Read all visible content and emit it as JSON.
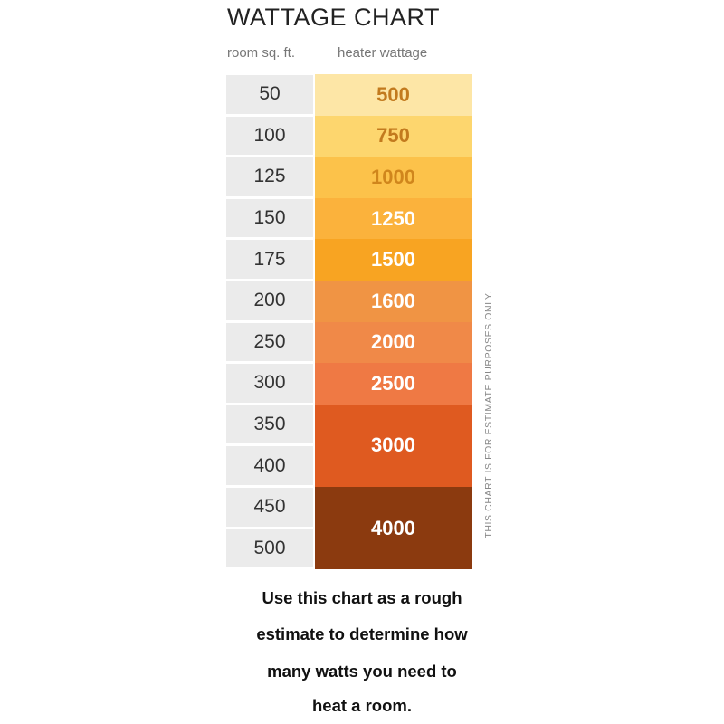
{
  "chart_data": {
    "type": "table",
    "title": "WATTAGE CHART",
    "columns": [
      "room sq. ft.",
      "heater wattage"
    ],
    "rows": [
      {
        "sqft": [
          "50"
        ],
        "watts": "500",
        "color": "#fde6a6",
        "text_color": "#c27a1e"
      },
      {
        "sqft": [
          "100"
        ],
        "watts": "750",
        "color": "#fdd66e",
        "text_color": "#c27a1e"
      },
      {
        "sqft": [
          "125"
        ],
        "watts": "1000",
        "color": "#fcc24a",
        "text_color": "#d0861c"
      },
      {
        "sqft": [
          "150"
        ],
        "watts": "1250",
        "color": "#fbb23c",
        "text_color": "#ffffff"
      },
      {
        "sqft": [
          "175"
        ],
        "watts": "1500",
        "color": "#f8a422",
        "text_color": "#ffffff"
      },
      {
        "sqft": [
          "200"
        ],
        "watts": "1600",
        "color": "#f09444",
        "text_color": "#ffffff"
      },
      {
        "sqft": [
          "250"
        ],
        "watts": "2000",
        "color": "#f08948",
        "text_color": "#ffffff"
      },
      {
        "sqft": [
          "300"
        ],
        "watts": "2500",
        "color": "#ef7944",
        "text_color": "#ffffff"
      },
      {
        "sqft": [
          "350",
          "400"
        ],
        "watts": "3000",
        "color": "#df5a20",
        "text_color": "#ffffff"
      },
      {
        "sqft": [
          "450",
          "500"
        ],
        "watts": "4000",
        "color": "#8b3a0f",
        "text_color": "#ffffff"
      }
    ],
    "side_note": "THIS CHART IS FOR ESTIMATE PURPOSES ONLY."
  },
  "caption": [
    "Use this chart as a rough",
    "estimate to determine how",
    "many watts you need to",
    "heat a room."
  ]
}
